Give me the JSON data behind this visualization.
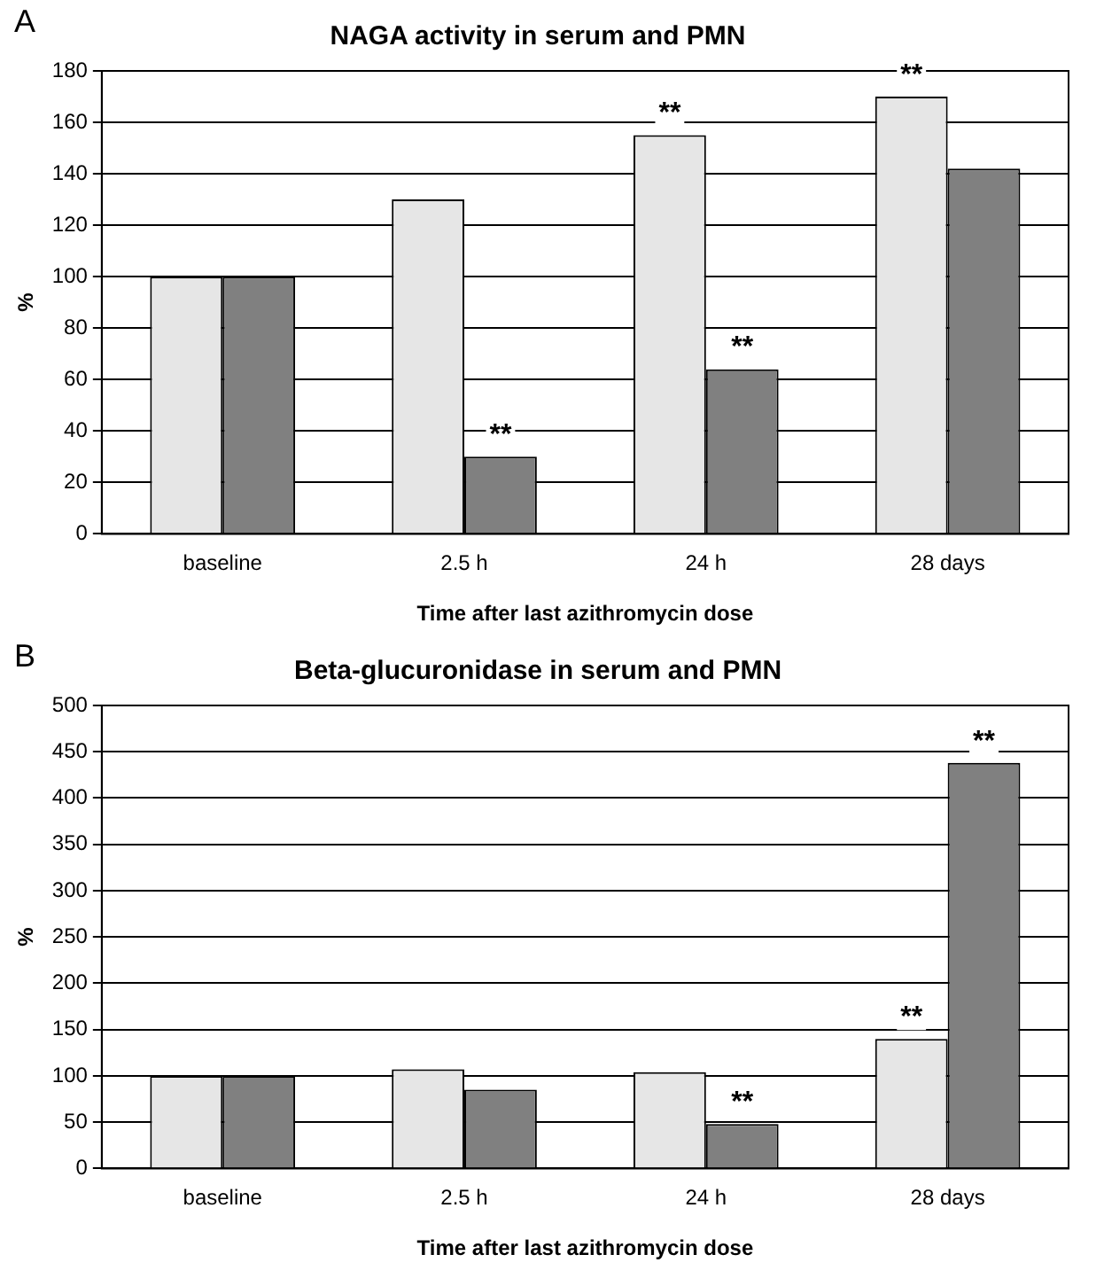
{
  "chart_data": [
    {
      "type": "bar",
      "title": "NAGA activity in serum and PMN",
      "xlabel": "Time after last azithromycin dose",
      "ylabel": "%",
      "categories": [
        "baseline",
        "2.5 h",
        "24 h",
        "28 days"
      ],
      "series": [
        {
          "color": "#e6e6e6",
          "values": [
            100,
            130,
            155,
            170
          ]
        },
        {
          "color": "#808080",
          "values": [
            100,
            30,
            64,
            142
          ]
        }
      ],
      "ylim": [
        0,
        180
      ],
      "yticks": [
        0,
        20,
        40,
        60,
        80,
        100,
        120,
        140,
        160,
        180
      ],
      "grid": "y",
      "legend": false,
      "annotations": [
        "A",
        {
          "text": "**",
          "x": "2.5 h",
          "y": 30
        },
        {
          "text": "**",
          "x": "24 h",
          "y": 155
        },
        {
          "text": "**",
          "x": "24 h",
          "y": 64
        },
        {
          "text": "**",
          "x": "28 days",
          "y": 170
        }
      ]
    },
    {
      "type": "bar",
      "title": "Beta-glucuronidase in serum and PMN",
      "xlabel": "Time after last azithromycin dose",
      "ylabel": "%",
      "categories": [
        "baseline",
        "2.5 h",
        "24 h",
        "28 days"
      ],
      "series": [
        {
          "color": "#e6e6e6",
          "values": [
            100,
            107,
            104,
            140
          ]
        },
        {
          "color": "#808080",
          "values": [
            100,
            85,
            48,
            438
          ]
        }
      ],
      "ylim": [
        0,
        500
      ],
      "yticks": [
        0,
        50,
        100,
        150,
        200,
        250,
        300,
        350,
        400,
        450,
        500
      ],
      "grid": "y",
      "legend": false,
      "annotations": [
        "B",
        {
          "text": "**",
          "x": "24 h",
          "y": 48
        },
        {
          "text": "**",
          "x": "28 days",
          "y": 140
        },
        {
          "text": "**",
          "x": "28 days",
          "y": 438
        }
      ]
    }
  ]
}
